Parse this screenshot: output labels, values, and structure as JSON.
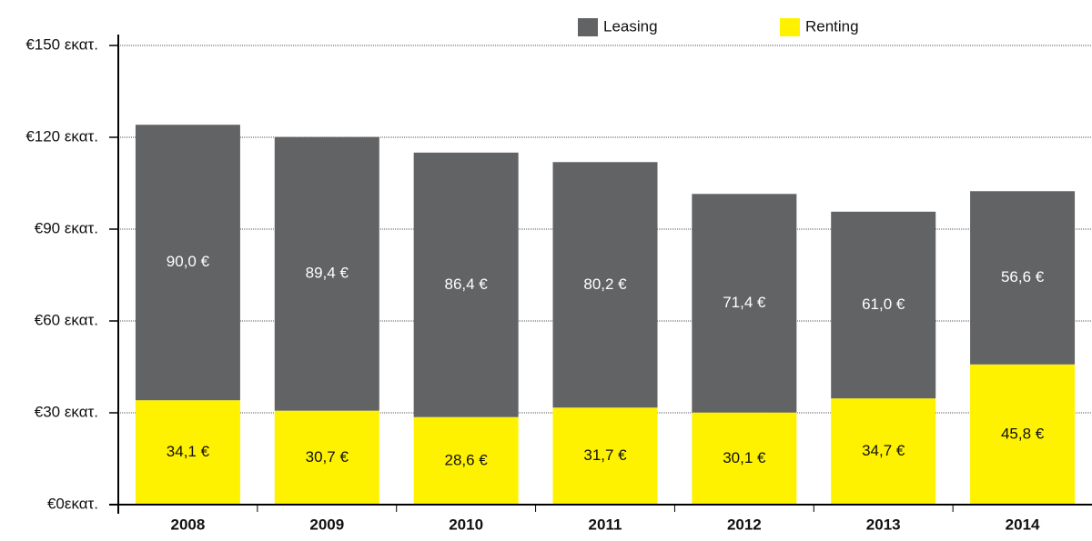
{
  "chart_data": {
    "type": "stacked_bar",
    "categories": [
      "2008",
      "2009",
      "2010",
      "2011",
      "2012",
      "2013",
      "2014"
    ],
    "series": [
      {
        "name": "Leasing",
        "color": "#626365",
        "values": [
          90.0,
          89.4,
          86.4,
          80.2,
          71.4,
          61.0,
          56.6
        ],
        "value_labels": [
          "90,0 €",
          "89,4 €",
          "86,4 €",
          "80,2 €",
          "71,4 €",
          "61,0 €",
          "56,6 €"
        ]
      },
      {
        "name": "Renting",
        "color": "#fff200",
        "values": [
          34.1,
          30.7,
          28.6,
          31.7,
          30.1,
          34.7,
          45.8
        ],
        "value_labels": [
          "34,1 €",
          "30,7 €",
          "28,6 €",
          "31,7 €",
          "30,1 €",
          "34,7 €",
          "45,8 €"
        ]
      }
    ],
    "ylim": [
      0,
      150
    ],
    "yticks": [
      {
        "value": 0,
        "label": "€0εκατ."
      },
      {
        "value": 30,
        "label": "€30 εκατ."
      },
      {
        "value": 60,
        "label": "€60 εκατ."
      },
      {
        "value": 90,
        "label": "€90 εκατ."
      },
      {
        "value": 120,
        "label": "€120 εκατ."
      },
      {
        "value": 150,
        "label": "€150 εκατ."
      }
    ],
    "grid": true
  }
}
